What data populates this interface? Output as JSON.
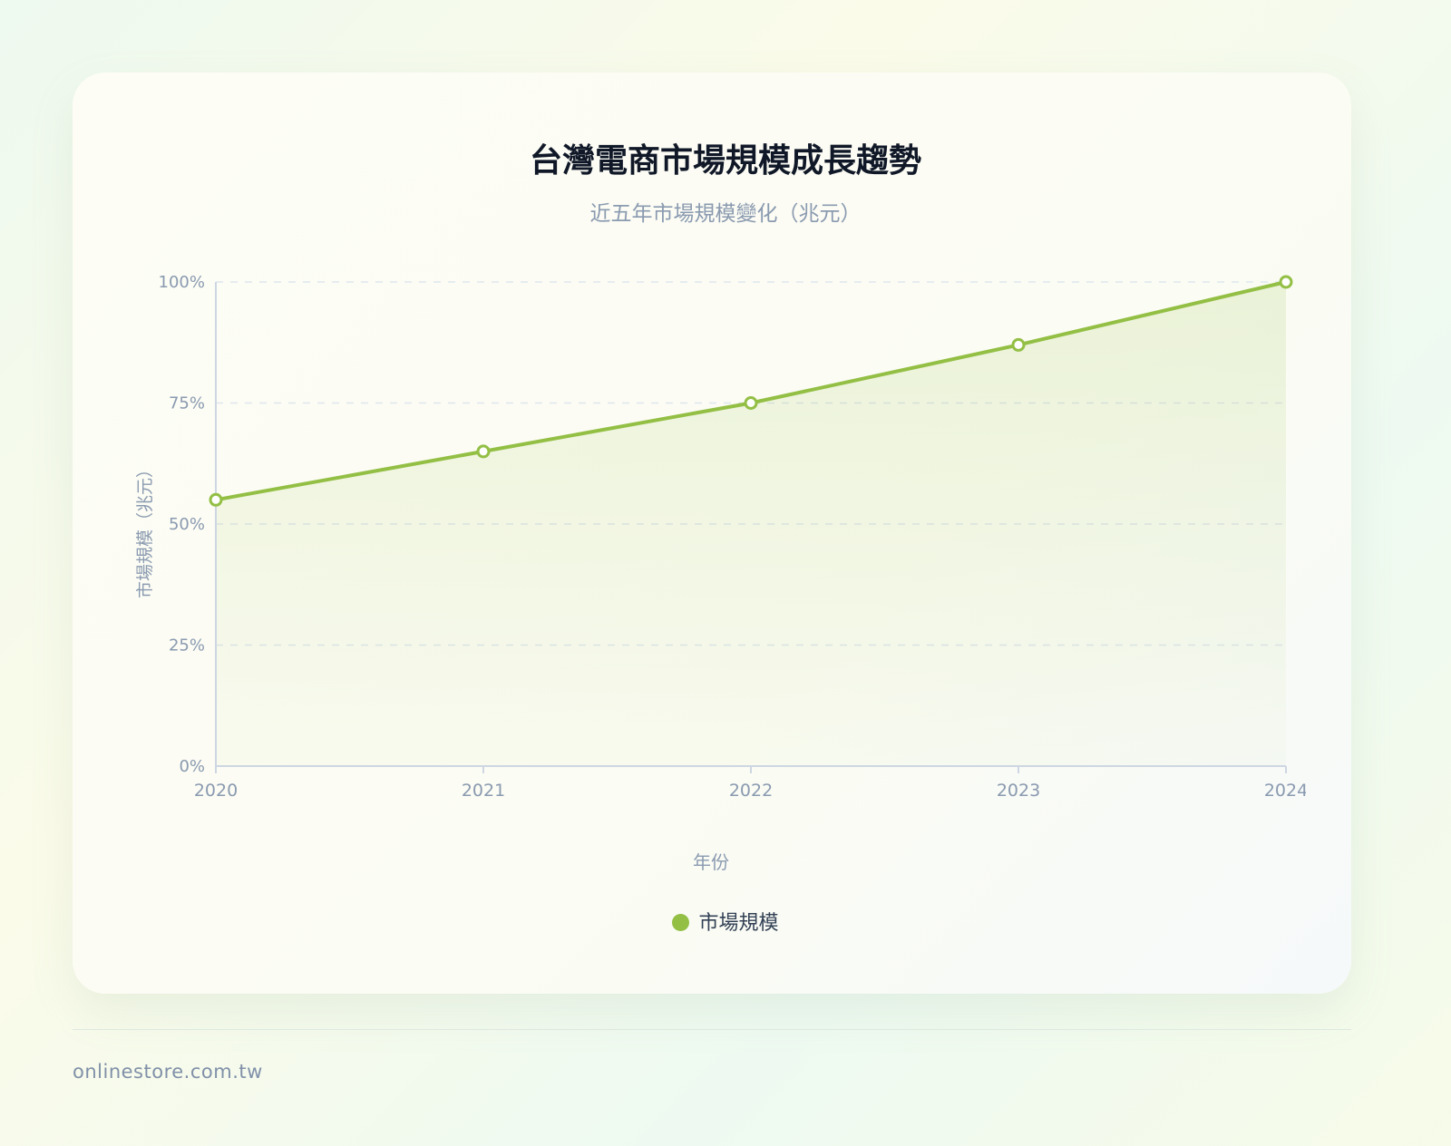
{
  "title": "台灣電商市場規模成長趨勢",
  "subtitle": "近五年市場規模變化（兆元）",
  "footer": "onlinestore.com.tw",
  "chart_data": {
    "type": "area",
    "title": "台灣電商市場規模成長趨勢",
    "subtitle": "近五年市場規模變化（兆元）",
    "xlabel": "年份",
    "ylabel": "市場規模（兆元）",
    "categories": [
      "2020",
      "2021",
      "2022",
      "2023",
      "2024"
    ],
    "series": [
      {
        "name": "市場規模",
        "values": [
          55,
          65,
          75,
          87,
          100
        ],
        "color": "#93bf45"
      }
    ],
    "yticks": [
      "0%",
      "25%",
      "50%",
      "75%",
      "100%"
    ],
    "ylim": [
      0,
      100
    ],
    "grid": true,
    "legend": "bottom"
  }
}
